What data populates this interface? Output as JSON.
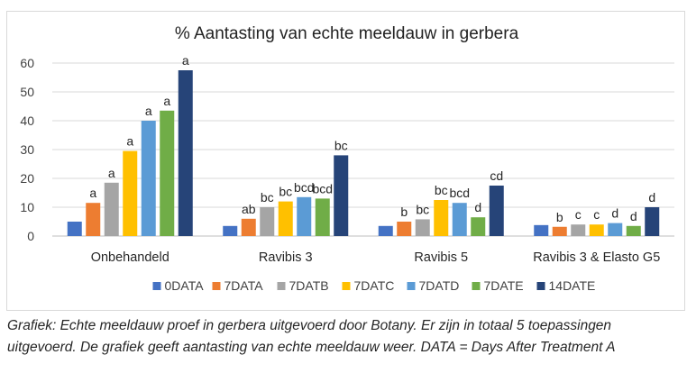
{
  "chart_data": {
    "type": "bar",
    "title": "% Aantasting van echte meeldauw in gerbera",
    "xlabel": "",
    "ylabel": "",
    "ylim": [
      0,
      60
    ],
    "yticks": [
      0,
      10,
      20,
      30,
      40,
      50,
      60
    ],
    "grid": true,
    "legend_position": "bottom",
    "categories": [
      "Onbehandeld",
      "Ravibis 3",
      "Ravibis 5",
      "Ravibis 3  & Elasto G5"
    ],
    "series": [
      {
        "name": "0DATA",
        "color": "#4472c4",
        "values": [
          5,
          3.5,
          3.5,
          3.8
        ],
        "labels": [
          "",
          "",
          "",
          ""
        ]
      },
      {
        "name": "7DATA",
        "color": "#ed7d31",
        "values": [
          11.5,
          6,
          5,
          3.2
        ],
        "labels": [
          "a",
          "ab",
          "b",
          "b"
        ]
      },
      {
        "name": "7DATB",
        "color": "#a5a5a5",
        "values": [
          18.5,
          10,
          5.8,
          4
        ],
        "labels": [
          "a",
          "bc",
          "bc",
          "c"
        ]
      },
      {
        "name": "7DATC",
        "color": "#ffc000",
        "values": [
          29.5,
          12,
          12.5,
          4
        ],
        "labels": [
          "a",
          "bc",
          "bc",
          "c"
        ]
      },
      {
        "name": "7DATD",
        "color": "#5b9bd5",
        "values": [
          40,
          13.5,
          11.5,
          4.5
        ],
        "labels": [
          "a",
          "bcd",
          "bcd",
          "d"
        ]
      },
      {
        "name": "7DATE",
        "color": "#70ad47",
        "values": [
          43.5,
          13,
          6.5,
          3.5
        ],
        "labels": [
          "a",
          "bcd",
          "d",
          "d"
        ]
      },
      {
        "name": "14DATE",
        "color": "#264478",
        "values": [
          57.5,
          28,
          17.5,
          10
        ],
        "labels": [
          "a",
          "bc",
          "cd",
          "d"
        ]
      }
    ]
  },
  "caption": "Grafiek: Echte meeldauw proef in gerbera uitgevoerd door Botany. Er zijn in totaal 5 toepassingen uitgevoerd. De grafiek geeft aantasting van echte meeldauw weer. DATA =  Days After Treatment A"
}
